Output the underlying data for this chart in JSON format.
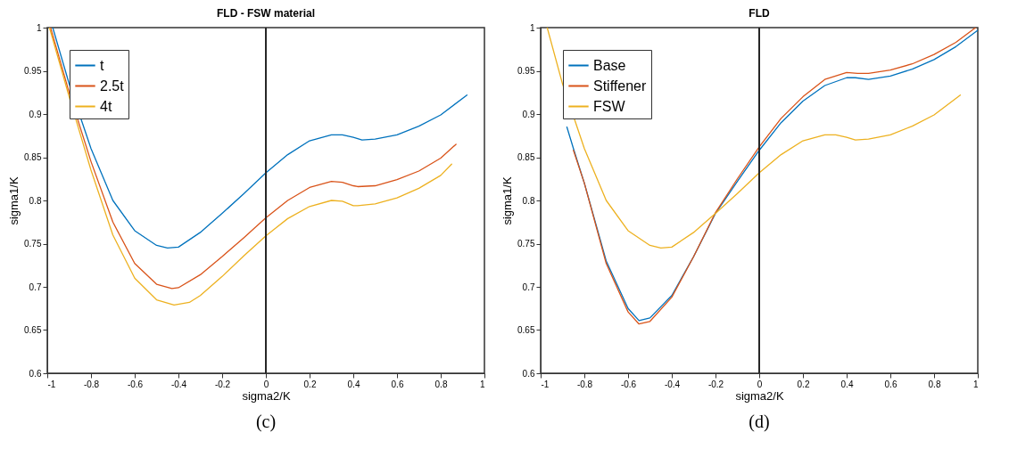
{
  "chart_data": [
    {
      "type": "line",
      "title": "FLD - FSW material",
      "xlabel": "sigma2/K",
      "ylabel": "sigma1/K",
      "annotations": [
        "(c)"
      ],
      "xlim": [
        -1,
        1
      ],
      "ylim": [
        0.6,
        1
      ],
      "xticks": [
        -1,
        -0.8,
        -0.6,
        -0.4,
        -0.2,
        0,
        0.2,
        0.4,
        0.6,
        0.8,
        1
      ],
      "yticks": [
        0.6,
        0.65,
        0.7,
        0.75,
        0.8,
        0.85,
        0.9,
        0.95,
        1
      ],
      "grid": false,
      "legend": "top left",
      "ref_lines": [
        {
          "axis": "x",
          "value": 0,
          "color": "#262626"
        }
      ],
      "series": [
        {
          "name": "t",
          "color": "#0072bd",
          "x": [
            -0.975,
            -0.9,
            -0.8,
            -0.7,
            -0.6,
            -0.5,
            -0.45,
            -0.4,
            -0.3,
            -0.2,
            -0.1,
            0,
            0.1,
            0.2,
            0.3,
            0.35,
            0.4,
            0.44,
            0.5,
            0.6,
            0.7,
            0.8,
            0.92
          ],
          "values": [
            1.0,
            0.935,
            0.86,
            0.8,
            0.765,
            0.748,
            0.745,
            0.746,
            0.763,
            0.785,
            0.808,
            0.832,
            0.853,
            0.869,
            0.876,
            0.876,
            0.873,
            0.87,
            0.871,
            0.876,
            0.886,
            0.899,
            0.922
          ]
        },
        {
          "name": "2.5t",
          "color": "#d95319",
          "x": [
            -0.985,
            -0.9,
            -0.8,
            -0.7,
            -0.6,
            -0.5,
            -0.43,
            -0.4,
            -0.3,
            -0.2,
            -0.1,
            0,
            0.1,
            0.2,
            0.3,
            0.35,
            0.4,
            0.42,
            0.5,
            0.6,
            0.7,
            0.8,
            0.87
          ],
          "values": [
            1.0,
            0.925,
            0.845,
            0.775,
            0.727,
            0.703,
            0.698,
            0.699,
            0.714,
            0.735,
            0.757,
            0.78,
            0.8,
            0.815,
            0.822,
            0.821,
            0.817,
            0.816,
            0.817,
            0.824,
            0.834,
            0.849,
            0.865
          ]
        },
        {
          "name": "4t",
          "color": "#edb120",
          "x": [
            -0.99,
            -0.9,
            -0.8,
            -0.7,
            -0.6,
            -0.5,
            -0.42,
            -0.35,
            -0.3,
            -0.2,
            -0.1,
            0,
            0.1,
            0.2,
            0.3,
            0.35,
            0.4,
            0.42,
            0.5,
            0.6,
            0.7,
            0.8,
            0.85
          ],
          "values": [
            1.0,
            0.92,
            0.835,
            0.76,
            0.71,
            0.685,
            0.679,
            0.682,
            0.69,
            0.712,
            0.736,
            0.759,
            0.779,
            0.793,
            0.8,
            0.799,
            0.794,
            0.794,
            0.796,
            0.803,
            0.814,
            0.829,
            0.842
          ]
        }
      ]
    },
    {
      "type": "line",
      "title": "FLD",
      "xlabel": "sigma2/K",
      "ylabel": "sigma1/K",
      "annotations": [
        "(d)"
      ],
      "xlim": [
        -1,
        1
      ],
      "ylim": [
        0.6,
        1
      ],
      "xticks": [
        -1,
        -0.8,
        -0.6,
        -0.4,
        -0.2,
        0,
        0.2,
        0.4,
        0.6,
        0.8,
        1
      ],
      "yticks": [
        0.6,
        0.65,
        0.7,
        0.75,
        0.8,
        0.85,
        0.9,
        0.95,
        1
      ],
      "grid": false,
      "legend": "top left",
      "ref_lines": [
        {
          "axis": "x",
          "value": 0,
          "color": "#262626"
        }
      ],
      "series": [
        {
          "name": "Base",
          "color": "#0072bd",
          "x": [
            -0.88,
            -0.85,
            -0.8,
            -0.7,
            -0.6,
            -0.55,
            -0.5,
            -0.4,
            -0.3,
            -0.2,
            -0.1,
            0,
            0.1,
            0.2,
            0.3,
            0.4,
            0.44,
            0.5,
            0.6,
            0.7,
            0.8,
            0.9,
            1.0
          ],
          "values": [
            0.885,
            0.86,
            0.82,
            0.73,
            0.675,
            0.661,
            0.664,
            0.69,
            0.735,
            0.785,
            0.822,
            0.858,
            0.89,
            0.915,
            0.933,
            0.942,
            0.942,
            0.94,
            0.944,
            0.952,
            0.963,
            0.978,
            0.997
          ]
        },
        {
          "name": "Stiffener",
          "color": "#d95319",
          "x": [
            -0.85,
            -0.8,
            -0.7,
            -0.6,
            -0.55,
            -0.5,
            -0.4,
            -0.3,
            -0.2,
            -0.1,
            0,
            0.1,
            0.2,
            0.3,
            0.4,
            0.45,
            0.5,
            0.6,
            0.7,
            0.8,
            0.9,
            0.99
          ],
          "values": [
            0.858,
            0.82,
            0.727,
            0.671,
            0.657,
            0.66,
            0.688,
            0.735,
            0.786,
            0.825,
            0.862,
            0.895,
            0.92,
            0.94,
            0.948,
            0.947,
            0.947,
            0.951,
            0.958,
            0.969,
            0.983,
            1.0
          ]
        },
        {
          "name": "FSW",
          "color": "#edb120",
          "x": [
            -0.97,
            -0.9,
            -0.8,
            -0.7,
            -0.6,
            -0.5,
            -0.45,
            -0.4,
            -0.3,
            -0.2,
            -0.1,
            0,
            0.1,
            0.2,
            0.3,
            0.35,
            0.4,
            0.44,
            0.5,
            0.6,
            0.7,
            0.8,
            0.92
          ],
          "values": [
            1.0,
            0.935,
            0.86,
            0.8,
            0.765,
            0.748,
            0.745,
            0.746,
            0.763,
            0.785,
            0.808,
            0.832,
            0.853,
            0.869,
            0.876,
            0.876,
            0.873,
            0.87,
            0.871,
            0.876,
            0.886,
            0.899,
            0.922
          ]
        }
      ]
    }
  ]
}
